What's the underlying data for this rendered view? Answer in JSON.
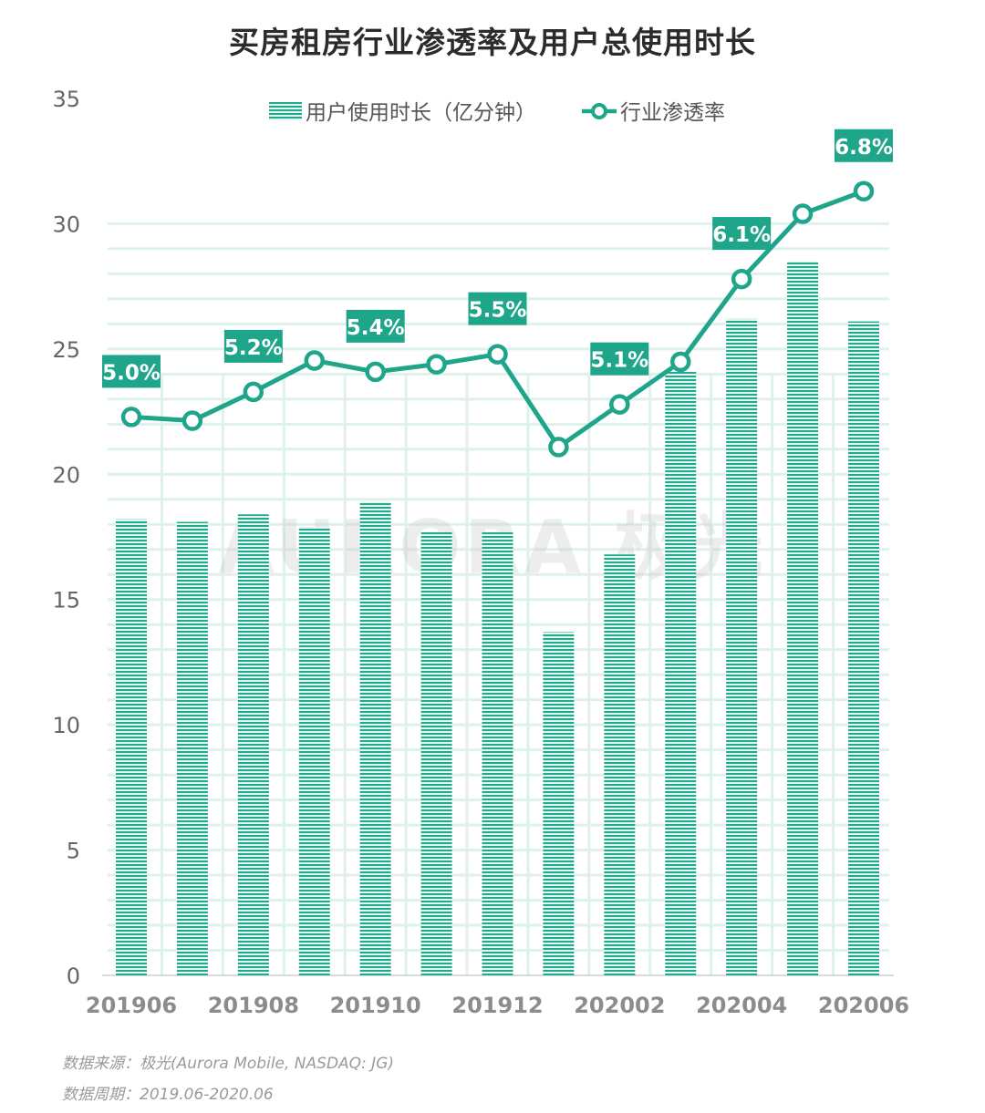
{
  "chart_data": {
    "type": "bar",
    "title": "买房租房行业渗透率及用户总使用时长",
    "categories": [
      "201906",
      "201907",
      "201908",
      "201909",
      "201910",
      "201911",
      "201912",
      "202001",
      "202002",
      "202003",
      "202004",
      "202005",
      "202006"
    ],
    "x_tick_labels": [
      "201906",
      "201908",
      "201910",
      "201912",
      "202002",
      "202004",
      "202006"
    ],
    "ylim": [
      0,
      35
    ],
    "y_ticks": [
      0,
      5,
      10,
      15,
      20,
      25,
      30,
      35
    ],
    "grid": true,
    "legend_position": "top",
    "series": [
      {
        "name": "用户使用时长（亿分钟）",
        "type": "bar",
        "values": [
          18.2,
          18.1,
          18.4,
          17.9,
          18.9,
          17.7,
          17.7,
          13.7,
          16.8,
          24.1,
          26.2,
          28.5,
          26.1
        ],
        "color": "#20a98c"
      },
      {
        "name": "行业渗透率",
        "type": "line",
        "unit": "%",
        "values": [
          5.0,
          4.97,
          5.2,
          5.45,
          5.36,
          5.42,
          5.5,
          4.76,
          5.1,
          5.44,
          6.1,
          6.62,
          6.8
        ],
        "labels": [
          "5.0%",
          "",
          "5.2%",
          "",
          "5.4%",
          "",
          "5.5%",
          "",
          "5.1%",
          "",
          "6.1%",
          "",
          "6.8%"
        ],
        "color": "#1fa58a"
      }
    ]
  },
  "watermark": "AURORA 极光",
  "footer": {
    "source": "数据来源：极光(Aurora Mobile, NASDAQ: JG)",
    "period": "数据周期：2019.06-2020.06"
  }
}
